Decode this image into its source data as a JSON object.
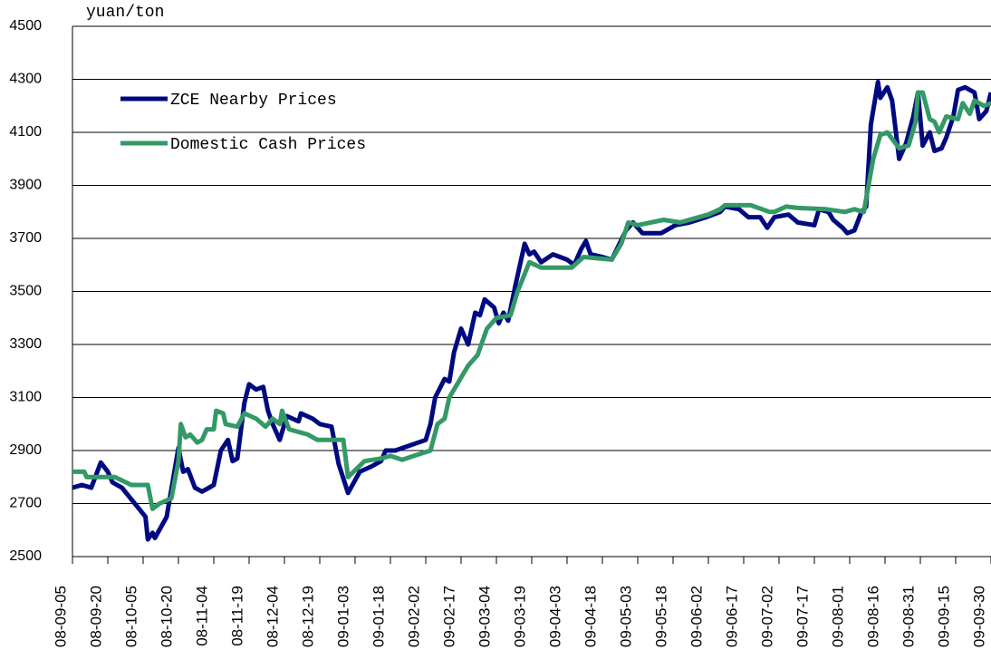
{
  "chart_data": {
    "type": "line",
    "y_label": "yuan/ton",
    "ylim": [
      2500,
      4500
    ],
    "yticks": [
      2500,
      2700,
      2900,
      3100,
      3300,
      3500,
      3700,
      3900,
      4100,
      4300,
      4500
    ],
    "xlim": [
      "08-09-05",
      "09-09-30"
    ],
    "xticks": [
      "08-09-05",
      "08-09-20",
      "08-10-05",
      "08-10-20",
      "08-11-04",
      "08-11-19",
      "08-12-04",
      "08-12-19",
      "09-01-03",
      "09-01-18",
      "09-02-02",
      "09-02-17",
      "09-03-04",
      "09-03-19",
      "09-04-03",
      "09-04-18",
      "09-05-03",
      "09-05-18",
      "09-06-02",
      "09-06-17",
      "09-07-02",
      "09-07-17",
      "09-08-01",
      "09-08-16",
      "09-08-31",
      "09-09-15",
      "09-09-30"
    ],
    "grid": true,
    "series": [
      {
        "name": "ZCE Nearby Prices",
        "color": "#000a80",
        "x": [
          "08-09-05",
          "08-09-09",
          "08-09-13",
          "08-09-17",
          "08-09-20",
          "08-09-22",
          "08-09-26",
          "08-10-06",
          "08-10-07",
          "08-10-09",
          "08-10-10",
          "08-10-15",
          "08-10-20",
          "08-10-22",
          "08-10-24",
          "08-10-27",
          "08-10-30",
          "08-11-02",
          "08-11-04",
          "08-11-07",
          "08-11-10",
          "08-11-12",
          "08-11-14",
          "08-11-17",
          "08-11-19",
          "08-11-22",
          "08-11-25",
          "08-11-27",
          "08-11-29",
          "08-12-02",
          "08-12-05",
          "08-12-10",
          "08-12-11",
          "08-12-16",
          "08-12-19",
          "08-12-24",
          "08-12-27",
          "08-12-31",
          "09-01-05",
          "09-01-10",
          "09-01-14",
          "09-01-16",
          "09-01-20",
          "09-02-02",
          "09-02-04",
          "09-02-06",
          "09-02-10",
          "09-02-12",
          "09-02-14",
          "09-02-17",
          "09-02-20",
          "09-02-23",
          "09-02-25",
          "09-02-27",
          "09-03-03",
          "09-03-05",
          "09-03-07",
          "09-03-09",
          "09-03-12",
          "09-03-16",
          "09-03-18",
          "09-03-20",
          "09-03-23",
          "09-03-28",
          "09-04-03",
          "09-04-06",
          "09-04-09",
          "09-04-11",
          "09-04-13",
          "09-04-18",
          "09-04-22",
          "09-04-28",
          "09-05-01",
          "09-05-05",
          "09-05-13",
          "09-05-19",
          "09-05-25",
          "09-06-01",
          "09-06-07",
          "09-06-09",
          "09-06-15",
          "09-06-19",
          "09-06-24",
          "09-06-27",
          "09-06-30",
          "09-07-06",
          "09-07-10",
          "09-07-17",
          "09-07-19",
          "09-07-23",
          "09-07-25",
          "09-07-29",
          "09-07-31",
          "09-08-03",
          "09-08-06",
          "09-08-08",
          "09-08-10",
          "09-08-13",
          "09-08-14",
          "09-08-17",
          "09-08-19",
          "09-08-22",
          "09-08-25",
          "09-08-28",
          "09-08-30",
          "09-09-01",
          "09-09-04",
          "09-09-06",
          "09-09-09",
          "09-09-11",
          "09-09-14",
          "09-09-16",
          "09-09-19",
          "09-09-23",
          "09-09-25",
          "09-09-28",
          "09-09-30"
        ],
        "values": [
          2760,
          2770,
          2760,
          2855,
          2820,
          2780,
          2760,
          2650,
          2565,
          2590,
          2570,
          2650,
          2910,
          2820,
          2830,
          2760,
          2745,
          2760,
          2770,
          2900,
          2940,
          2860,
          2870,
          3080,
          3150,
          3130,
          3140,
          3050,
          3000,
          2940,
          3030,
          3010,
          3040,
          3020,
          3000,
          2990,
          2850,
          2740,
          2820,
          2840,
          2860,
          2900,
          2900,
          2940,
          3000,
          3100,
          3170,
          3160,
          3270,
          3360,
          3300,
          3420,
          3410,
          3470,
          3440,
          3380,
          3420,
          3390,
          3520,
          3680,
          3640,
          3650,
          3610,
          3640,
          3620,
          3600,
          3660,
          3690,
          3640,
          3630,
          3620,
          3730,
          3760,
          3720,
          3720,
          3750,
          3760,
          3780,
          3800,
          3820,
          3810,
          3780,
          3780,
          3740,
          3780,
          3790,
          3760,
          3750,
          3810,
          3800,
          3770,
          3740,
          3720,
          3730,
          3800,
          3820,
          4130,
          4290,
          4230,
          4270,
          4220,
          4000,
          4060,
          4160,
          4250,
          4050,
          4100,
          4030,
          4040,
          4080,
          4160,
          4260,
          4270,
          4250,
          4150,
          4180,
          4250
        ]
      },
      {
        "name": "Domestic Cash Prices",
        "color": "#339966",
        "x": [
          "08-09-05",
          "08-09-10",
          "08-09-11",
          "08-09-23",
          "08-09-30",
          "08-10-07",
          "08-10-09",
          "08-10-12",
          "08-10-17",
          "08-10-20",
          "08-10-21",
          "08-10-23",
          "08-10-25",
          "08-10-28",
          "08-10-30",
          "08-11-01",
          "08-11-04",
          "08-11-05",
          "08-11-08",
          "08-11-09",
          "08-11-14",
          "08-11-17",
          "08-11-22",
          "08-11-26",
          "08-11-29",
          "08-12-02",
          "08-12-03",
          "08-12-06",
          "08-12-14",
          "08-12-18",
          "08-12-29",
          "08-12-31",
          "09-01-07",
          "09-01-14",
          "09-01-18",
          "09-01-23",
          "09-01-28",
          "09-02-04",
          "09-02-07",
          "09-02-10",
          "09-02-12",
          "09-02-20",
          "09-02-24",
          "09-02-28",
          "09-03-04",
          "09-03-10",
          "09-03-13",
          "09-03-18",
          "09-03-23",
          "09-04-05",
          "09-04-10",
          "09-04-22",
          "09-04-26",
          "09-04-29",
          "09-05-03",
          "09-05-14",
          "09-05-21",
          "09-06-02",
          "09-06-07",
          "09-06-09",
          "09-06-20",
          "09-06-28",
          "09-06-30",
          "09-07-05",
          "09-07-10",
          "09-07-22",
          "09-07-30",
          "09-08-03",
          "09-08-07",
          "09-08-11",
          "09-08-14",
          "09-08-17",
          "09-08-22",
          "09-08-26",
          "09-08-29",
          "09-08-30",
          "09-09-01",
          "09-09-04",
          "09-09-06",
          "09-09-08",
          "09-09-11",
          "09-09-16",
          "09-09-18",
          "09-09-21",
          "09-09-23",
          "09-09-27",
          "09-09-30"
        ],
        "values": [
          2820,
          2820,
          2800,
          2800,
          2770,
          2770,
          2680,
          2700,
          2720,
          2860,
          3000,
          2950,
          2960,
          2930,
          2940,
          2980,
          2980,
          3050,
          3040,
          3000,
          2990,
          3040,
          3020,
          2990,
          3020,
          3000,
          3050,
          2980,
          2960,
          2940,
          2940,
          2800,
          2860,
          2870,
          2880,
          2865,
          2880,
          2900,
          3000,
          3020,
          3100,
          3220,
          3260,
          3360,
          3400,
          3410,
          3500,
          3610,
          3590,
          3590,
          3630,
          3620,
          3680,
          3760,
          3750,
          3770,
          3760,
          3790,
          3810,
          3825,
          3825,
          3800,
          3800,
          3820,
          3815,
          3810,
          3800,
          3810,
          3800,
          4000,
          4090,
          4100,
          4040,
          4050,
          4140,
          4250,
          4250,
          4150,
          4140,
          4100,
          4160,
          4150,
          4210,
          4170,
          4220,
          4200,
          4210
        ]
      }
    ]
  }
}
